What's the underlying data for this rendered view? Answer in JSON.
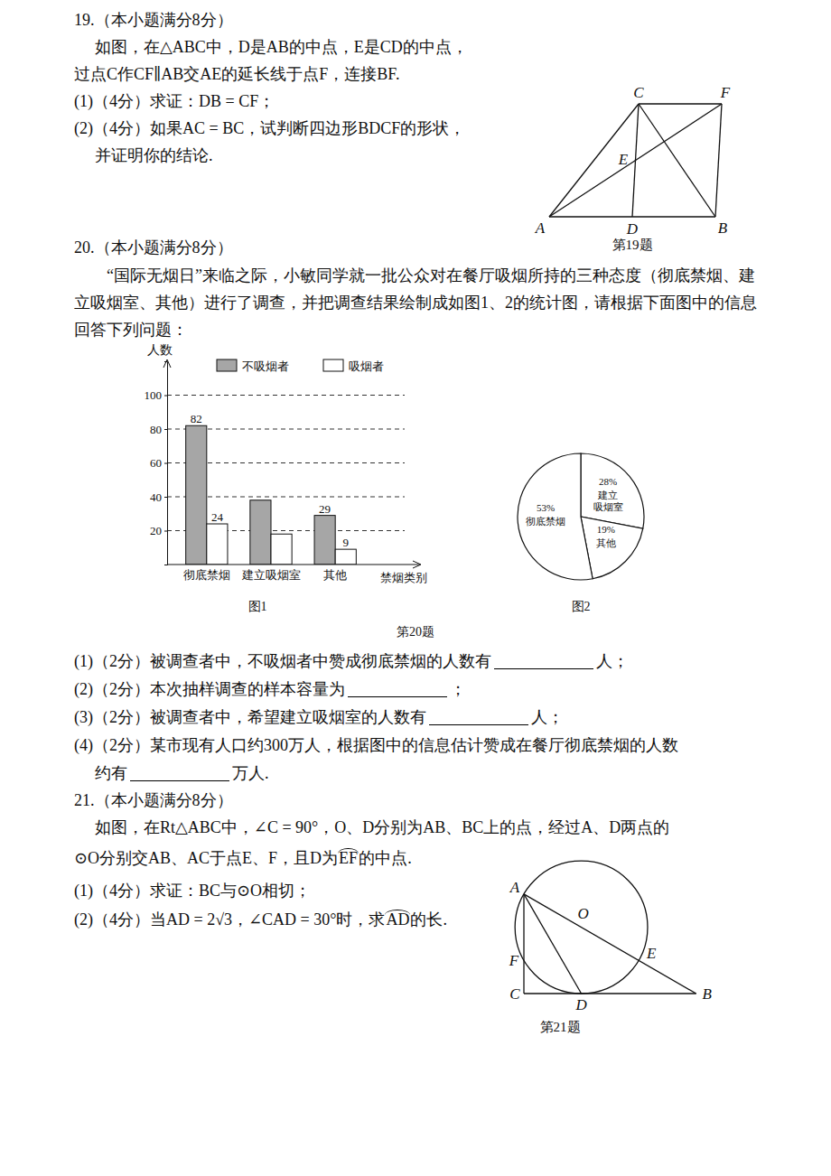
{
  "document": {
    "q19": {
      "heading": "19.（本小题满分8分）",
      "lines": [
        "如图，在△ABC中，D是AB的中点，E是CD的中点，",
        "过点C作CF∥AB交AE的延长线于点F，连接BF.",
        "(1)（4分）求证：DB = CF；",
        "(2)（4分）如果AC = BC，试判断四边形BDCF的形状，",
        "并证明你的结论."
      ],
      "labels": [
        "C",
        "F",
        "E",
        "A",
        "D",
        "B"
      ],
      "caption": "第19题"
    },
    "q20": {
      "heading": "20.（本小题满分8分）",
      "intro": "“国际无烟日”来临之际，小敏同学就一批公众对在餐厅吸烟所持的三种态度（彻底禁烟、建立吸烟室、其他）进行了调查，并把调查结果绘制成如图1、2的统计图，请根据下面图中的信息回答下列问题：",
      "caption": "第20题",
      "parts": [
        {
          "before": "(1)（2分）被调查者中，不吸烟者中赞成彻底禁烟的人数有",
          "after": "人；"
        },
        {
          "before": "(2)（2分）本次抽样调查的样本容量为",
          "after": "；"
        },
        {
          "before": "(3)（2分）被调查者中，希望建立吸烟室的人数有",
          "after": "人；"
        },
        {
          "before": "(4)（2分）某市现有人口约300万人，根据图中的信息估计赞成在餐厅彻底禁烟的人数"
        },
        {
          "before": "约有",
          "after": "万人."
        }
      ]
    },
    "q21": {
      "heading": "21.（本小题满分8分）",
      "lines": [
        "如图，在Rt△ABC中，∠C = 90°，O、D分别为AB、BC上的点，经过A、D两点的",
        {
          "before": "⊙O分别交AB、AC于点E、F，且D为",
          "arc": "EF",
          "after": "的中点."
        },
        "(1)（4分）求证：BC与⊙O相切；",
        {
          "before": "(2)（4分）当AD = 2√3，∠CAD = 30°时，求",
          "arc": "AD",
          "after": "的长."
        }
      ],
      "labels": [
        "A",
        "O",
        "E",
        "F",
        "C",
        "D",
        "B"
      ],
      "caption": "第21题"
    }
  },
  "chart_data": [
    {
      "type": "bar",
      "y_label": "人数",
      "x_label": "禁烟类别",
      "caption": "图1",
      "categories": [
        "彻底禁烟",
        "建立吸烟室",
        "其他"
      ],
      "series": [
        {
          "name": "不吸烟者",
          "color": "#a6a6a6",
          "values": [
            82,
            38,
            29
          ],
          "value_labels": [
            "82",
            null,
            "29"
          ]
        },
        {
          "name": "吸烟者",
          "color": "#ffffff",
          "values": [
            24,
            18,
            9
          ],
          "value_labels": [
            "24",
            null,
            "9"
          ]
        }
      ],
      "ylim": [
        0,
        120
      ],
      "yticks": [
        20,
        40,
        60,
        80,
        100
      ],
      "grid": true,
      "legend": "top",
      "data_labels": true
    },
    {
      "type": "pie",
      "caption": "图2",
      "categories": [
        "建立吸烟室",
        "其他",
        "彻底禁烟"
      ],
      "values": [
        28,
        19,
        53
      ],
      "value_labels": [
        "28%",
        "19%",
        "53%"
      ],
      "color": "#ffffff",
      "data_labels": true
    }
  ]
}
